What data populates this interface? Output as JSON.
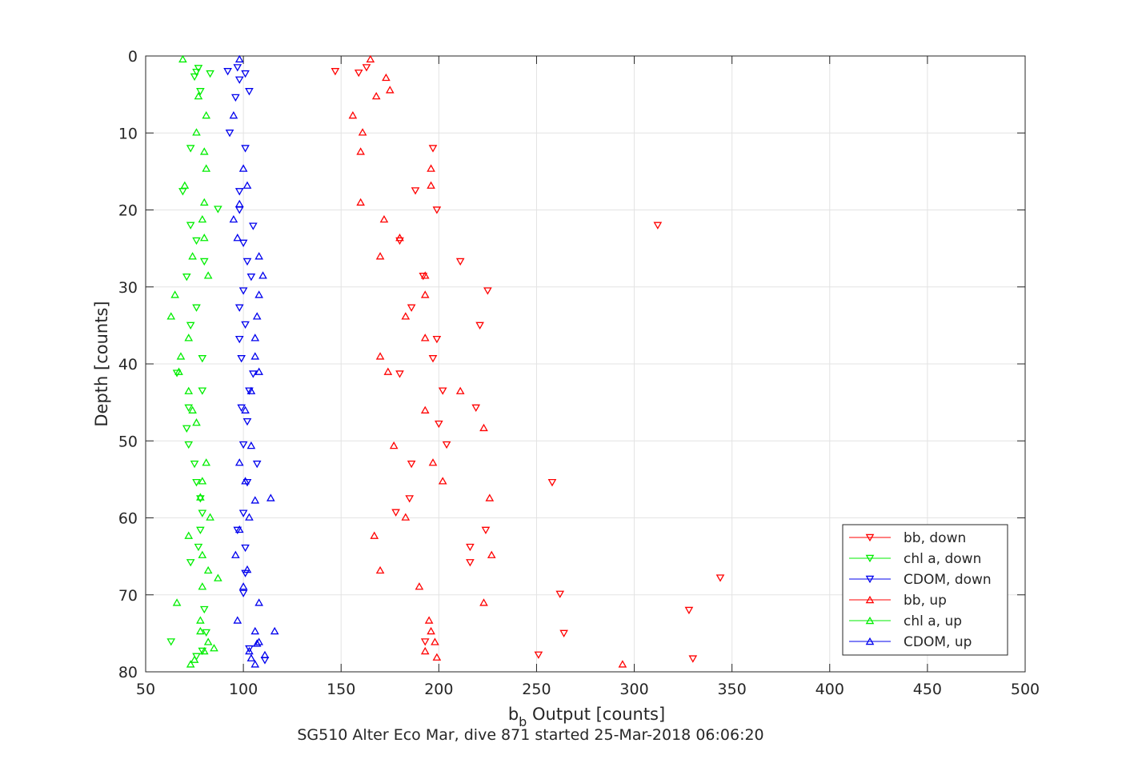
{
  "chart_data": {
    "type": "scatter",
    "title": "",
    "xlabel_main": "b",
    "xlabel_sub": "b",
    "xlabel_rest": " Output [counts]",
    "ylabel": "Depth [counts]",
    "caption": "SG510 Alter Eco Mar, dive 871 started 25-Mar-2018 06:06:20",
    "xlim": [
      50,
      500
    ],
    "ylim": [
      0,
      80
    ],
    "y_reversed": true,
    "grid": true,
    "legend_position": "bottom-right",
    "xticks": [
      50,
      100,
      150,
      200,
      250,
      300,
      350,
      400,
      450,
      500
    ],
    "yticks": [
      0,
      10,
      20,
      30,
      40,
      50,
      60,
      70,
      80
    ],
    "series": [
      {
        "name": "bb, down",
        "color": "#ff0000",
        "marker": "triangle-down",
        "points": [
          [
            147,
            2
          ],
          [
            159,
            2.2
          ],
          [
            163,
            1.5
          ],
          [
            197,
            12
          ],
          [
            188,
            17.5
          ],
          [
            199,
            20
          ],
          [
            312,
            22
          ],
          [
            180,
            24
          ],
          [
            211,
            26.7
          ],
          [
            192,
            28.6
          ],
          [
            225,
            30.5
          ],
          [
            186,
            32.7
          ],
          [
            221,
            35
          ],
          [
            199,
            36.8
          ],
          [
            197,
            39.3
          ],
          [
            180,
            41.3
          ],
          [
            202,
            43.5
          ],
          [
            219,
            45.7
          ],
          [
            200,
            47.8
          ],
          [
            204,
            50.5
          ],
          [
            186,
            53
          ],
          [
            258,
            55.4
          ],
          [
            185,
            57.5
          ],
          [
            178,
            59.3
          ],
          [
            224,
            61.6
          ],
          [
            216,
            63.8
          ],
          [
            216,
            65.8
          ],
          [
            344,
            67.8
          ],
          [
            262,
            69.9
          ],
          [
            328,
            72
          ],
          [
            264,
            75
          ],
          [
            193,
            76.1
          ],
          [
            251,
            77.8
          ],
          [
            330,
            78.3
          ]
        ]
      },
      {
        "name": "chl a, down",
        "color": "#00ee00",
        "marker": "triangle-down",
        "points": [
          [
            77,
            1.6
          ],
          [
            76,
            2.1
          ],
          [
            83,
            2.3
          ],
          [
            75,
            2.7
          ],
          [
            78,
            4.6
          ],
          [
            73,
            12
          ],
          [
            69,
            17.6
          ],
          [
            87,
            19.9
          ],
          [
            73,
            22
          ],
          [
            76,
            24
          ],
          [
            80,
            26.7
          ],
          [
            71,
            28.7
          ],
          [
            76,
            32.7
          ],
          [
            73,
            35
          ],
          [
            79,
            39.3
          ],
          [
            66,
            41.2
          ],
          [
            79,
            43.5
          ],
          [
            72,
            45.7
          ],
          [
            71,
            48.4
          ],
          [
            72,
            50.5
          ],
          [
            75,
            53
          ],
          [
            76,
            55.4
          ],
          [
            78,
            57.5
          ],
          [
            79,
            59.4
          ],
          [
            78,
            61.6
          ],
          [
            77,
            63.8
          ],
          [
            73,
            65.8
          ],
          [
            80,
            71.9
          ],
          [
            81,
            74.9
          ],
          [
            63,
            76.1
          ],
          [
            79,
            77.3
          ],
          [
            76,
            78
          ]
        ]
      },
      {
        "name": "CDOM, down",
        "color": "#0000ee",
        "marker": "triangle-down",
        "points": [
          [
            92,
            2
          ],
          [
            97,
            1.5
          ],
          [
            101,
            2.3
          ],
          [
            98,
            3.1
          ],
          [
            103,
            4.6
          ],
          [
            96,
            5.4
          ],
          [
            93,
            10
          ],
          [
            101,
            12
          ],
          [
            98,
            17.6
          ],
          [
            98,
            20
          ],
          [
            105,
            22.1
          ],
          [
            100,
            24.3
          ],
          [
            102,
            26.7
          ],
          [
            104,
            28.7
          ],
          [
            100,
            30.5
          ],
          [
            98,
            32.7
          ],
          [
            101,
            34.9
          ],
          [
            98,
            36.8
          ],
          [
            99,
            39.3
          ],
          [
            105,
            41.3
          ],
          [
            103,
            43.5
          ],
          [
            99,
            45.7
          ],
          [
            102,
            47.5
          ],
          [
            100,
            50.5
          ],
          [
            107,
            53
          ],
          [
            102,
            55.4
          ],
          [
            100,
            59.4
          ],
          [
            97,
            61.6
          ],
          [
            101,
            63.9
          ],
          [
            101,
            67.2
          ],
          [
            100,
            69.8
          ],
          [
            103,
            77
          ],
          [
            111,
            78.5
          ]
        ]
      },
      {
        "name": "bb, up",
        "color": "#ff0000",
        "marker": "triangle-up",
        "points": [
          [
            165,
            0.4
          ],
          [
            173,
            2.8
          ],
          [
            175,
            4.4
          ],
          [
            168,
            5.2
          ],
          [
            156,
            7.7
          ],
          [
            161,
            9.9
          ],
          [
            160,
            12.4
          ],
          [
            196,
            14.6
          ],
          [
            196,
            16.8
          ],
          [
            160,
            19
          ],
          [
            172,
            21.2
          ],
          [
            180,
            23.6
          ],
          [
            170,
            26
          ],
          [
            193,
            28.5
          ],
          [
            193,
            31
          ],
          [
            183,
            33.8
          ],
          [
            193,
            36.6
          ],
          [
            170,
            39
          ],
          [
            174,
            41
          ],
          [
            211,
            43.5
          ],
          [
            193,
            46
          ],
          [
            223,
            48.3
          ],
          [
            177,
            50.6
          ],
          [
            197,
            52.8
          ],
          [
            202,
            55.2
          ],
          [
            226,
            57.4
          ],
          [
            183,
            59.9
          ],
          [
            167,
            62.3
          ],
          [
            227,
            64.8
          ],
          [
            170,
            66.8
          ],
          [
            190,
            68.9
          ],
          [
            223,
            71
          ],
          [
            195,
            73.3
          ],
          [
            196,
            74.7
          ],
          [
            198,
            76.1
          ],
          [
            193,
            77.3
          ],
          [
            199,
            78.1
          ],
          [
            294,
            79
          ]
        ]
      },
      {
        "name": "chl a, up",
        "color": "#00ee00",
        "marker": "triangle-up",
        "points": [
          [
            69,
            0.4
          ],
          [
            77,
            5.2
          ],
          [
            81,
            7.7
          ],
          [
            76,
            9.9
          ],
          [
            80,
            12.4
          ],
          [
            81,
            14.6
          ],
          [
            70,
            16.8
          ],
          [
            80,
            19
          ],
          [
            79,
            21.2
          ],
          [
            80,
            23.6
          ],
          [
            74,
            26
          ],
          [
            82,
            28.5
          ],
          [
            65,
            31
          ],
          [
            63,
            33.8
          ],
          [
            72,
            36.6
          ],
          [
            68,
            39
          ],
          [
            67,
            41
          ],
          [
            72,
            43.5
          ],
          [
            74,
            46
          ],
          [
            76,
            47.6
          ],
          [
            81,
            52.8
          ],
          [
            79,
            55.2
          ],
          [
            78,
            57.3
          ],
          [
            83,
            59.9
          ],
          [
            72,
            62.3
          ],
          [
            79,
            64.8
          ],
          [
            82,
            66.8
          ],
          [
            87,
            67.8
          ],
          [
            79,
            68.9
          ],
          [
            66,
            71
          ],
          [
            78,
            73.3
          ],
          [
            78,
            74.7
          ],
          [
            82,
            76.1
          ],
          [
            85,
            76.9
          ],
          [
            80,
            77.3
          ],
          [
            75,
            78.4
          ],
          [
            73,
            79
          ]
        ]
      },
      {
        "name": "CDOM, up",
        "color": "#0000ee",
        "marker": "triangle-up",
        "points": [
          [
            98,
            0.4
          ],
          [
            95,
            7.7
          ],
          [
            100,
            14.6
          ],
          [
            102,
            16.8
          ],
          [
            98,
            19.2
          ],
          [
            95,
            21.2
          ],
          [
            97,
            23.6
          ],
          [
            108,
            26
          ],
          [
            110,
            28.5
          ],
          [
            108,
            31
          ],
          [
            107,
            33.8
          ],
          [
            106,
            36.6
          ],
          [
            106,
            39
          ],
          [
            108,
            41
          ],
          [
            104,
            43.5
          ],
          [
            101,
            46
          ],
          [
            104,
            50.6
          ],
          [
            98,
            52.8
          ],
          [
            101,
            55.2
          ],
          [
            106,
            57.7
          ],
          [
            114,
            57.4
          ],
          [
            103,
            59.9
          ],
          [
            98,
            61.5
          ],
          [
            96,
            64.8
          ],
          [
            102,
            66.7
          ],
          [
            100,
            68.9
          ],
          [
            108,
            71
          ],
          [
            97,
            73.3
          ],
          [
            106,
            74.7
          ],
          [
            116,
            74.7
          ],
          [
            108,
            76.1
          ],
          [
            107,
            76.3
          ],
          [
            103,
            77.3
          ],
          [
            111,
            77.8
          ],
          [
            104,
            78.2
          ],
          [
            106,
            79
          ]
        ]
      }
    ]
  }
}
